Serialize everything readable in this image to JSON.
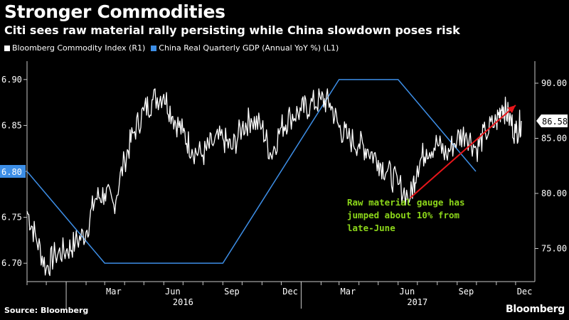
{
  "header": {
    "title": "Stronger Commodities",
    "subtitle": "Citi sees raw material rally persisting while China slowdown poses risk"
  },
  "footer": {
    "source": "Source: Bloomberg",
    "brand": "Bloomberg"
  },
  "colors": {
    "background": "#000000",
    "commodity": "#ffffff",
    "gdp": "#3d8ee6",
    "arrow": "#e8161b",
    "annotation": "#8cd61a",
    "axis": "#c8c8c8"
  },
  "chart_data": {
    "type": "line",
    "title": "Stronger Commodities",
    "subtitle": "Citi sees raw material rally persisting while China slowdown poses risk",
    "x_months": [
      "2015-11",
      "2015-12",
      "2016-01",
      "2016-02",
      "2016-03",
      "2016-04",
      "2016-05",
      "2016-06",
      "2016-07",
      "2016-08",
      "2016-09",
      "2016-10",
      "2016-11",
      "2016-12",
      "2017-01",
      "2017-02",
      "2017-03",
      "2017-04",
      "2017-05",
      "2017-06",
      "2017-07",
      "2017-08",
      "2017-09",
      "2017-10",
      "2017-11",
      "2017-12"
    ],
    "x_tick_labels": [
      "Mar",
      "Jun",
      "Sep",
      "Dec",
      "Mar",
      "Jun",
      "Sep",
      "Dec"
    ],
    "year_labels": [
      "2016",
      "2017"
    ],
    "left_axis": {
      "label": "L1",
      "ticks": [
        "6.90",
        "6.85",
        "6.80",
        "6.75",
        "6.70"
      ],
      "ylim": [
        6.68,
        6.92
      ]
    },
    "right_axis": {
      "label": "R1",
      "ticks": [
        "90.00",
        "85.00",
        "80.00",
        "75.00"
      ],
      "ylim": [
        72,
        92
      ]
    },
    "series": [
      {
        "name": "Bloomberg Commodity Index (R1)",
        "axis": "right",
        "last_value_label": "86.58",
        "points": [
          [
            "2015-11-01",
            78.4
          ],
          [
            "2015-11-15",
            76.0
          ],
          [
            "2015-12-01",
            73.2
          ],
          [
            "2015-12-15",
            74.5
          ],
          [
            "2016-01-01",
            74.8
          ],
          [
            "2016-01-15",
            75.5
          ],
          [
            "2016-02-01",
            76.5
          ],
          [
            "2016-02-15",
            79.5
          ],
          [
            "2016-03-01",
            80.0
          ],
          [
            "2016-03-15",
            79.0
          ],
          [
            "2016-04-01",
            83.0
          ],
          [
            "2016-04-15",
            85.5
          ],
          [
            "2016-05-01",
            87.5
          ],
          [
            "2016-05-15",
            88.5
          ],
          [
            "2016-06-01",
            89.0
          ],
          [
            "2016-06-15",
            87.0
          ],
          [
            "2016-07-01",
            85.5
          ],
          [
            "2016-07-15",
            84.0
          ],
          [
            "2016-08-01",
            83.5
          ],
          [
            "2016-08-15",
            84.5
          ],
          [
            "2016-09-01",
            85.0
          ],
          [
            "2016-09-15",
            84.0
          ],
          [
            "2016-10-01",
            86.0
          ],
          [
            "2016-10-15",
            86.8
          ],
          [
            "2016-11-01",
            86.0
          ],
          [
            "2016-11-15",
            83.5
          ],
          [
            "2016-12-01",
            86.0
          ],
          [
            "2016-12-15",
            87.0
          ],
          [
            "2017-01-01",
            87.5
          ],
          [
            "2017-01-15",
            88.0
          ],
          [
            "2017-02-01",
            88.5
          ],
          [
            "2017-02-15",
            88.2
          ],
          [
            "2017-03-01",
            86.0
          ],
          [
            "2017-03-15",
            85.0
          ],
          [
            "2017-04-01",
            84.5
          ],
          [
            "2017-04-15",
            84.0
          ],
          [
            "2017-05-01",
            83.0
          ],
          [
            "2017-05-15",
            82.0
          ],
          [
            "2017-06-01",
            80.8
          ],
          [
            "2017-06-20",
            79.6
          ],
          [
            "2017-07-01",
            82.5
          ],
          [
            "2017-07-15",
            84.0
          ],
          [
            "2017-08-01",
            84.5
          ],
          [
            "2017-08-15",
            83.5
          ],
          [
            "2017-09-01",
            85.0
          ],
          [
            "2017-09-15",
            85.5
          ],
          [
            "2017-10-01",
            84.0
          ],
          [
            "2017-10-15",
            85.5
          ],
          [
            "2017-11-01",
            86.5
          ],
          [
            "2017-11-10",
            88.0
          ],
          [
            "2017-11-20",
            87.0
          ],
          [
            "2017-12-01",
            85.5
          ],
          [
            "2017-12-10",
            86.58
          ]
        ]
      },
      {
        "name": "China Real Quarterly GDP (Annual YoY %) (L1)",
        "axis": "left",
        "last_value_label": "6.80",
        "points": [
          [
            "2015-11-01",
            6.8
          ],
          [
            "2016-03-01",
            6.7
          ],
          [
            "2016-09-01",
            6.7
          ],
          [
            "2017-03-01",
            6.9
          ],
          [
            "2017-06-01",
            6.9
          ],
          [
            "2017-09-30",
            6.8
          ]
        ]
      }
    ],
    "annotation": {
      "text": [
        "Raw material gauge has",
        "jumped about 10% from",
        "late-June"
      ],
      "arrow_from": [
        "2017-06-20",
        79.6
      ],
      "arrow_to": [
        "2017-12-01",
        88.0
      ]
    },
    "grid": false,
    "legend_position": "top-left"
  }
}
